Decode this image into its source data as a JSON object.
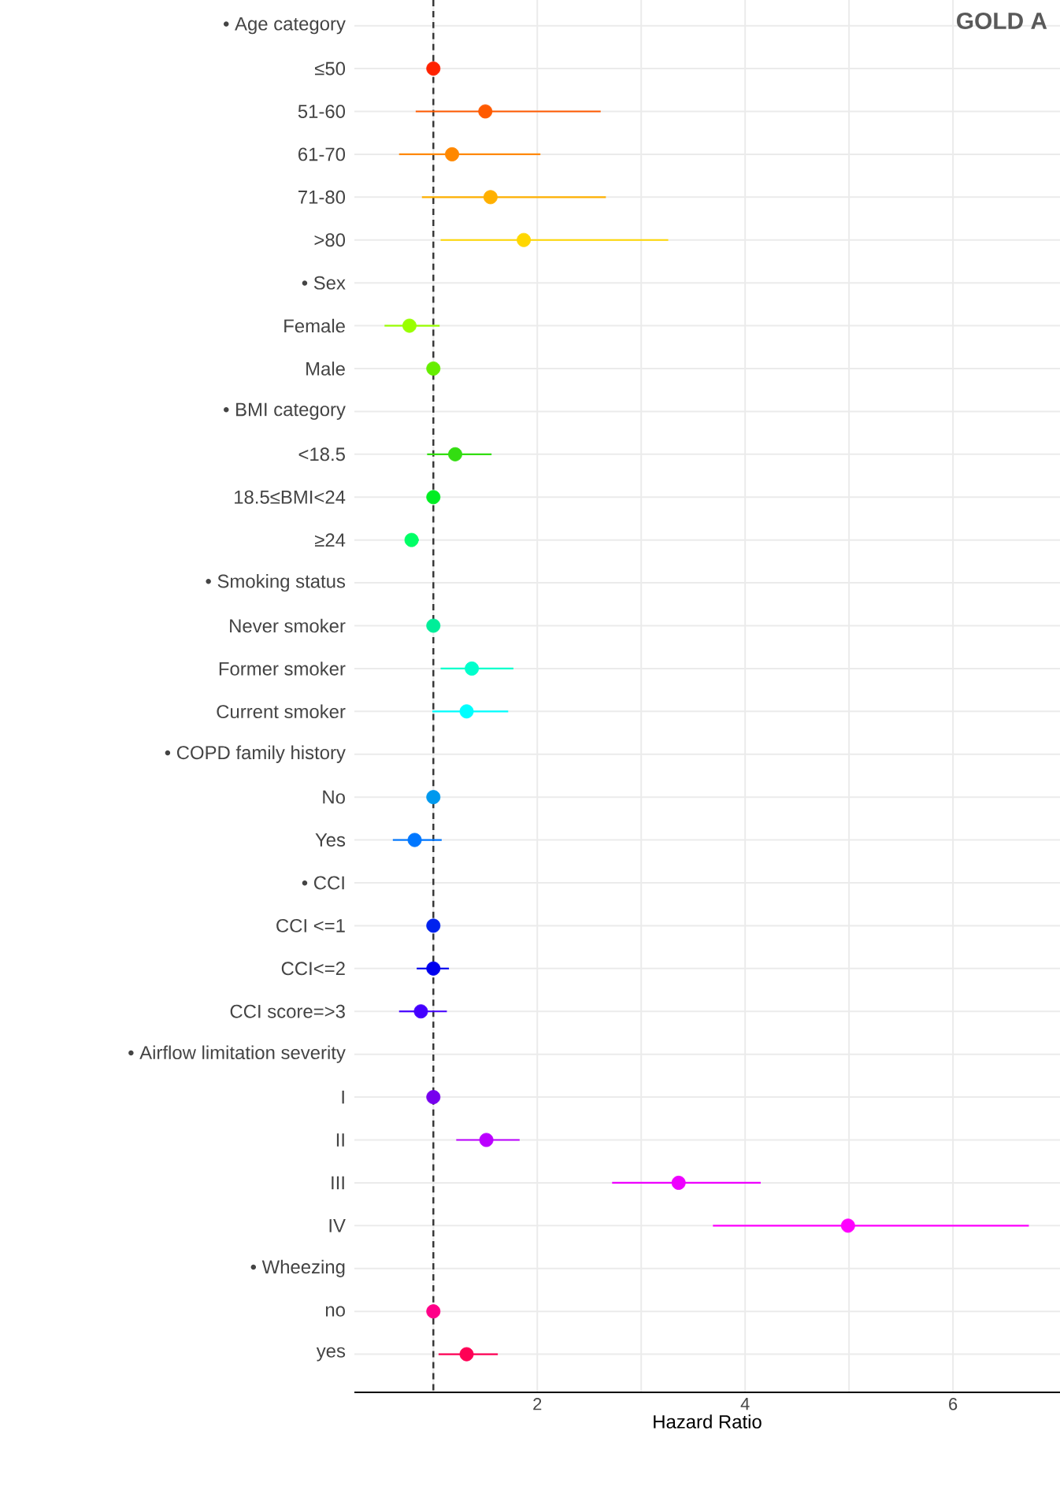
{
  "chart_data": {
    "type": "scatter",
    "orientation": "horizontal",
    "title": "GOLD A",
    "xlabel": "Hazard Ratio",
    "categories": [
      "• Age category",
      "≤50",
      "51-60",
      "61-70",
      "71-80",
      ">80",
      "• Sex",
      "Female",
      "Male",
      "• BMI category",
      "<18.5",
      "18.5≤BMI<24",
      "≥24",
      "• Smoking status",
      "Never smoker",
      "Former smoker",
      "Current smoker",
      "• COPD family history",
      "No",
      "Yes",
      "• CCI",
      "CCI <=1",
      "CCI<=2",
      "CCI score=>3",
      "• Airflow limitation severity",
      "I",
      "II",
      "III",
      "IV",
      "• Wheezing",
      "no",
      "yes"
    ],
    "values": [
      null,
      1,
      1.5,
      1.18,
      1.55,
      1.87,
      null,
      0.77,
      1,
      null,
      1.21,
      1,
      0.79,
      null,
      1,
      1.37,
      1.32,
      null,
      1,
      0.82,
      null,
      1,
      1.0,
      0.88,
      null,
      1,
      1.51,
      3.36,
      4.99,
      null,
      1,
      1.32
    ],
    "errors": [
      null,
      null,
      [
        0.83,
        2.61
      ],
      [
        0.67,
        2.03
      ],
      [
        0.89,
        2.66
      ],
      [
        1.07,
        3.26
      ],
      null,
      [
        0.53,
        1.06
      ],
      null,
      null,
      [
        0.94,
        1.56
      ],
      null,
      [
        0.73,
        0.86
      ],
      null,
      null,
      [
        1.07,
        1.77
      ],
      [
        0.99,
        1.72
      ],
      null,
      null,
      [
        0.61,
        1.08
      ],
      null,
      null,
      [
        0.84,
        1.15
      ],
      [
        0.67,
        1.13
      ],
      null,
      null,
      [
        1.22,
        1.83
      ],
      [
        2.72,
        4.15
      ],
      [
        3.69,
        6.73
      ],
      null,
      null,
      [
        1.05,
        1.62
      ]
    ],
    "colors": [
      null,
      "#ff2200",
      "#ff5a00",
      "#ff8800",
      "#ffb000",
      "#ffd700",
      null,
      "#99ff00",
      "#66ee00",
      null,
      "#33dd11",
      "#00ee22",
      "#00ff66",
      null,
      "#00ee99",
      "#00ffcc",
      "#00ffff",
      null,
      "#0099ee",
      "#0077ff",
      null,
      "#0022ee",
      "#0000ee",
      "#4400ff",
      null,
      "#7700ee",
      "#bb00ff",
      "#ee00ff",
      "#ff00ff",
      null,
      "#ff0088",
      "#ff0055"
    ],
    "xlim": [
      0.24,
      7.03
    ],
    "xticks": [
      {
        "value": 1,
        "label": null
      },
      2,
      {
        "value": 3,
        "label": null
      },
      4,
      {
        "value": 5,
        "label": null
      },
      6
    ],
    "ref_lines": [
      {
        "axis": "x",
        "value": 1,
        "line_style": "dashed",
        "color": "#333333"
      }
    ],
    "grid": true
  }
}
